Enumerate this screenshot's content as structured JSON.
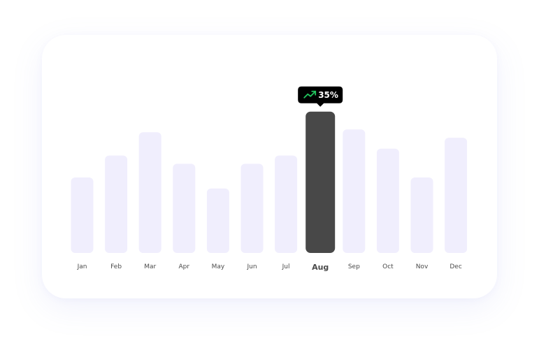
{
  "chart_data": {
    "type": "bar",
    "categories": [
      "Jan",
      "Feb",
      "Mar",
      "Apr",
      "May",
      "Jun",
      "Jul",
      "Aug",
      "Sep",
      "Oct",
      "Nov",
      "Dec"
    ],
    "values": [
      55,
      71,
      88,
      65,
      47,
      65,
      71,
      103,
      90,
      76,
      55,
      84
    ],
    "ylim": [
      0,
      110
    ],
    "highlight_index": 7,
    "tooltip": {
      "label": "35%",
      "icon": "trending-up-icon",
      "icon_color": "#22c55e"
    },
    "colors": {
      "bar": "#f0eefd",
      "bar_active": "#484848",
      "tooltip_bg": "#000000"
    },
    "grid": false,
    "legend": "none"
  }
}
